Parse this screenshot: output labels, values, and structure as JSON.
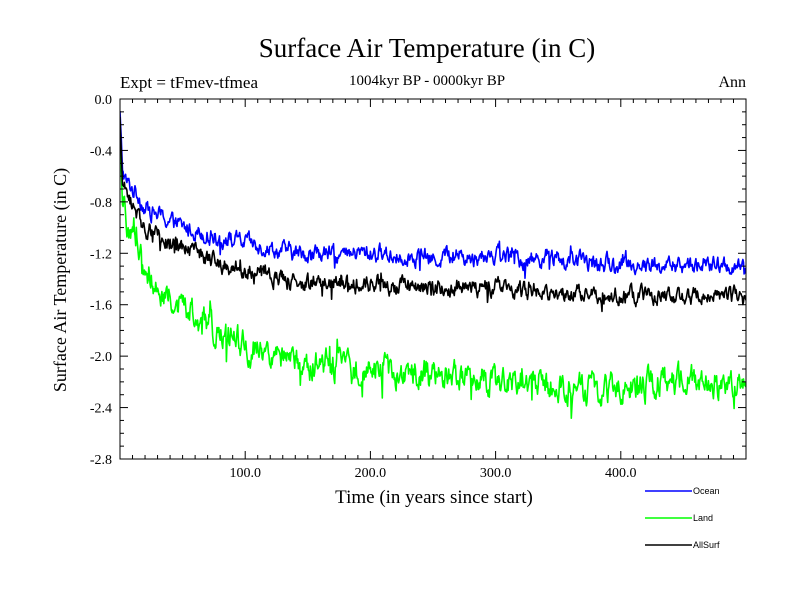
{
  "chart_data": {
    "type": "line",
    "title": "Surface Air Temperature (in C)",
    "subtitle": "1004kyr BP - 0000kyr BP",
    "experiment_label": "Expt = tFmev-tfmea",
    "period_label": "Ann",
    "xlabel": "Time (in years since start)",
    "ylabel": "Surface Air Temperature (in C)",
    "xlim": [
      0,
      500
    ],
    "ylim": [
      -2.8,
      0.0
    ],
    "x_ticks": [
      100,
      200,
      300,
      400
    ],
    "x_tick_labels": [
      "100.0",
      "200.0",
      "300.0",
      "400.0"
    ],
    "y_ticks": [
      0.0,
      -0.4,
      -0.8,
      -1.2,
      -1.6,
      -2.0,
      -2.4,
      -2.8
    ],
    "y_tick_labels": [
      "0.0",
      "-0.4",
      "-0.8",
      "-1.2",
      "-1.6",
      "-2.0",
      "-2.4",
      "-2.8"
    ],
    "legend_position": "bottom-right",
    "series": [
      {
        "name": "Ocean",
        "color": "#0000ff",
        "x": [
          0,
          2,
          5,
          10,
          15,
          20,
          30,
          40,
          50,
          60,
          70,
          80,
          90,
          100,
          110,
          120,
          130,
          140,
          150,
          160,
          170,
          180,
          190,
          200,
          210,
          220,
          230,
          240,
          250,
          260,
          270,
          280,
          290,
          300,
          310,
          320,
          330,
          340,
          350,
          360,
          370,
          380,
          390,
          400,
          410,
          420,
          430,
          440,
          450,
          460,
          470,
          480,
          490,
          500
        ],
        "values": [
          -0.1,
          -0.55,
          -0.65,
          -0.7,
          -0.75,
          -0.85,
          -0.9,
          -0.95,
          -1.0,
          -1.02,
          -1.05,
          -1.08,
          -1.1,
          -1.12,
          -1.14,
          -1.16,
          -1.18,
          -1.2,
          -1.2,
          -1.2,
          -1.22,
          -1.22,
          -1.2,
          -1.2,
          -1.2,
          -1.22,
          -1.22,
          -1.22,
          -1.25,
          -1.22,
          -1.2,
          -1.25,
          -1.22,
          -1.2,
          -1.22,
          -1.25,
          -1.25,
          -1.22,
          -1.25,
          -1.28,
          -1.25,
          -1.28,
          -1.28,
          -1.3,
          -1.28,
          -1.3,
          -1.3,
          -1.3,
          -1.3,
          -1.28,
          -1.3,
          -1.3,
          -1.3,
          -1.35
        ]
      },
      {
        "name": "Land",
        "color": "#00ff00",
        "x": [
          0,
          2,
          5,
          10,
          15,
          20,
          30,
          40,
          50,
          60,
          70,
          80,
          90,
          100,
          110,
          120,
          130,
          140,
          150,
          160,
          170,
          180,
          190,
          200,
          210,
          220,
          230,
          240,
          250,
          260,
          270,
          280,
          290,
          300,
          310,
          320,
          330,
          340,
          350,
          360,
          370,
          380,
          390,
          400,
          410,
          420,
          430,
          440,
          450,
          460,
          470,
          480,
          490,
          500
        ],
        "values": [
          -0.3,
          -0.85,
          -0.95,
          -1.05,
          -1.15,
          -1.3,
          -1.45,
          -1.55,
          -1.62,
          -1.7,
          -1.76,
          -1.82,
          -1.88,
          -1.92,
          -1.96,
          -2.0,
          -2.02,
          -2.05,
          -2.05,
          -2.06,
          -2.08,
          -2.1,
          -2.1,
          -2.1,
          -2.1,
          -2.12,
          -2.12,
          -2.14,
          -2.15,
          -2.15,
          -2.15,
          -2.18,
          -2.18,
          -2.2,
          -2.2,
          -2.2,
          -2.2,
          -2.22,
          -2.22,
          -2.25,
          -2.25,
          -2.25,
          -2.25,
          -2.22,
          -2.22,
          -2.22,
          -2.2,
          -2.2,
          -2.2,
          -2.2,
          -2.2,
          -2.2,
          -2.2,
          -2.25
        ]
      },
      {
        "name": "AllSurf",
        "color": "#000000",
        "x": [
          0,
          2,
          5,
          10,
          15,
          20,
          30,
          40,
          50,
          60,
          70,
          80,
          90,
          100,
          110,
          120,
          130,
          140,
          150,
          160,
          170,
          180,
          190,
          200,
          210,
          220,
          230,
          240,
          250,
          260,
          270,
          280,
          290,
          300,
          310,
          320,
          330,
          340,
          350,
          360,
          370,
          380,
          390,
          400,
          410,
          420,
          430,
          440,
          450,
          460,
          470,
          480,
          490,
          500
        ],
        "values": [
          -0.15,
          -0.65,
          -0.75,
          -0.82,
          -0.9,
          -1.0,
          -1.08,
          -1.12,
          -1.16,
          -1.2,
          -1.24,
          -1.28,
          -1.3,
          -1.33,
          -1.36,
          -1.38,
          -1.4,
          -1.42,
          -1.42,
          -1.42,
          -1.43,
          -1.44,
          -1.44,
          -1.44,
          -1.44,
          -1.45,
          -1.45,
          -1.46,
          -1.48,
          -1.46,
          -1.45,
          -1.48,
          -1.47,
          -1.46,
          -1.47,
          -1.49,
          -1.49,
          -1.48,
          -1.5,
          -1.52,
          -1.5,
          -1.52,
          -1.52,
          -1.53,
          -1.52,
          -1.53,
          -1.53,
          -1.53,
          -1.53,
          -1.52,
          -1.53,
          -1.53,
          -1.53,
          -1.6
        ]
      }
    ]
  }
}
